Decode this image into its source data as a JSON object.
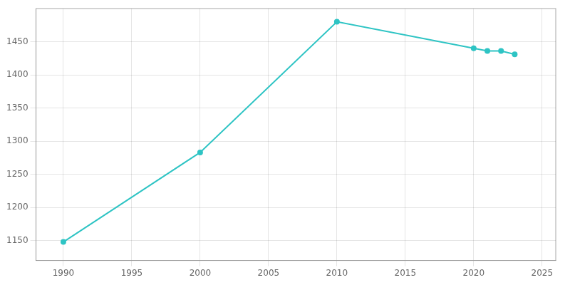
{
  "chart_data": {
    "type": "line",
    "x": [
      1990,
      2000,
      2010,
      2020,
      2021,
      2022,
      2023
    ],
    "values": [
      1148,
      1283,
      1480,
      1440,
      1436,
      1436,
      1431
    ],
    "color": "#2EC4C4",
    "marker": "circle",
    "xlim": [
      1988,
      2026
    ],
    "ylim": [
      1120,
      1500
    ],
    "xticks": [
      1990,
      1995,
      2000,
      2005,
      2010,
      2015,
      2020,
      2025
    ],
    "yticks": [
      1150,
      1200,
      1250,
      1300,
      1350,
      1400,
      1450
    ],
    "grid": true
  }
}
